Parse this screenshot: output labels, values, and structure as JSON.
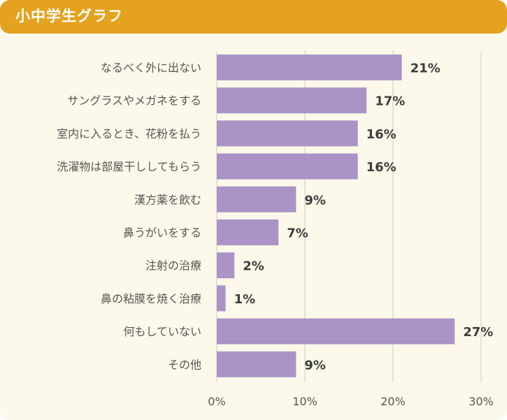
{
  "header": {
    "title": "小中学生グラフ"
  },
  "colors": {
    "header_bg": "#e5a21f",
    "panel_bg": "#fdf9ea",
    "bar": "#ab93c6",
    "grid": "#d9d9d9",
    "label": "#555555",
    "value": "#3d3d3d"
  },
  "chart_data": {
    "type": "bar",
    "orientation": "horizontal",
    "categories": [
      "なるべく外に出ない",
      "サングラスやメガネをする",
      "室内に入るとき、花粉を払う",
      "洗濯物は部屋干ししてもらう",
      "漢方薬を飲む",
      "鼻うがいをする",
      "注射の治療",
      "鼻の粘膜を焼く治療",
      "何もしていない",
      "その他"
    ],
    "values": [
      21,
      17,
      16,
      16,
      9,
      7,
      2,
      1,
      27,
      9
    ],
    "value_labels": [
      "21%",
      "17%",
      "16%",
      "16%",
      "9%",
      "7%",
      "2%",
      "1%",
      "27%",
      "9%"
    ],
    "xlim": [
      0,
      30
    ],
    "ticks": [
      0,
      10,
      20,
      30
    ],
    "tick_labels": [
      "0%",
      "10%",
      "20%",
      "30%"
    ],
    "grid": true,
    "legend": "none"
  }
}
